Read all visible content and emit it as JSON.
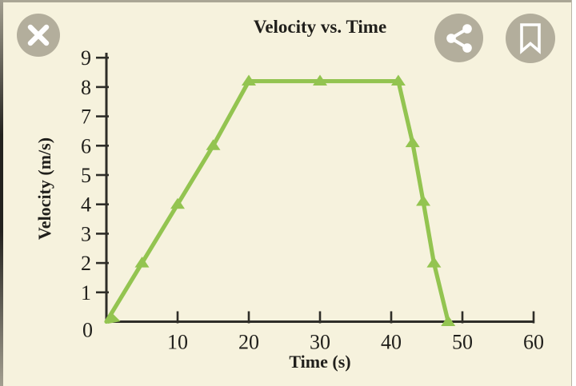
{
  "colors": {
    "background": "#f6f2dd",
    "line_green": "#93c450",
    "axis": "#2e2d28",
    "text": "#201f1b",
    "button_circle": "#b3ae9c",
    "icon_glyph": "#ffffff"
  },
  "toolbar": {
    "icons": [
      "close",
      "share",
      "bookmark"
    ]
  },
  "chart_data": {
    "type": "line",
    "title": "Velocity vs. Time",
    "xlabel": "Time (s)",
    "ylabel": "Velocity (m/s)",
    "xlim": [
      0,
      60
    ],
    "ylim": [
      0,
      9
    ],
    "xticks": [
      10,
      20,
      30,
      40,
      50,
      60
    ],
    "yticks": [
      0,
      1,
      2,
      3,
      4,
      5,
      6,
      7,
      8,
      9
    ],
    "origin_label": "0",
    "grid": false,
    "legend": false,
    "series": [
      {
        "name": "velocity",
        "color": "#93c450",
        "marker": "triangle-up",
        "points": [
          [
            0,
            0
          ],
          [
            5,
            2
          ],
          [
            10,
            4
          ],
          [
            15,
            6
          ],
          [
            20,
            8.2
          ],
          [
            30,
            8.2
          ],
          [
            41,
            8.2
          ],
          [
            43,
            6.1
          ],
          [
            44.5,
            4.1
          ],
          [
            46,
            2
          ],
          [
            48,
            0
          ]
        ]
      }
    ]
  }
}
